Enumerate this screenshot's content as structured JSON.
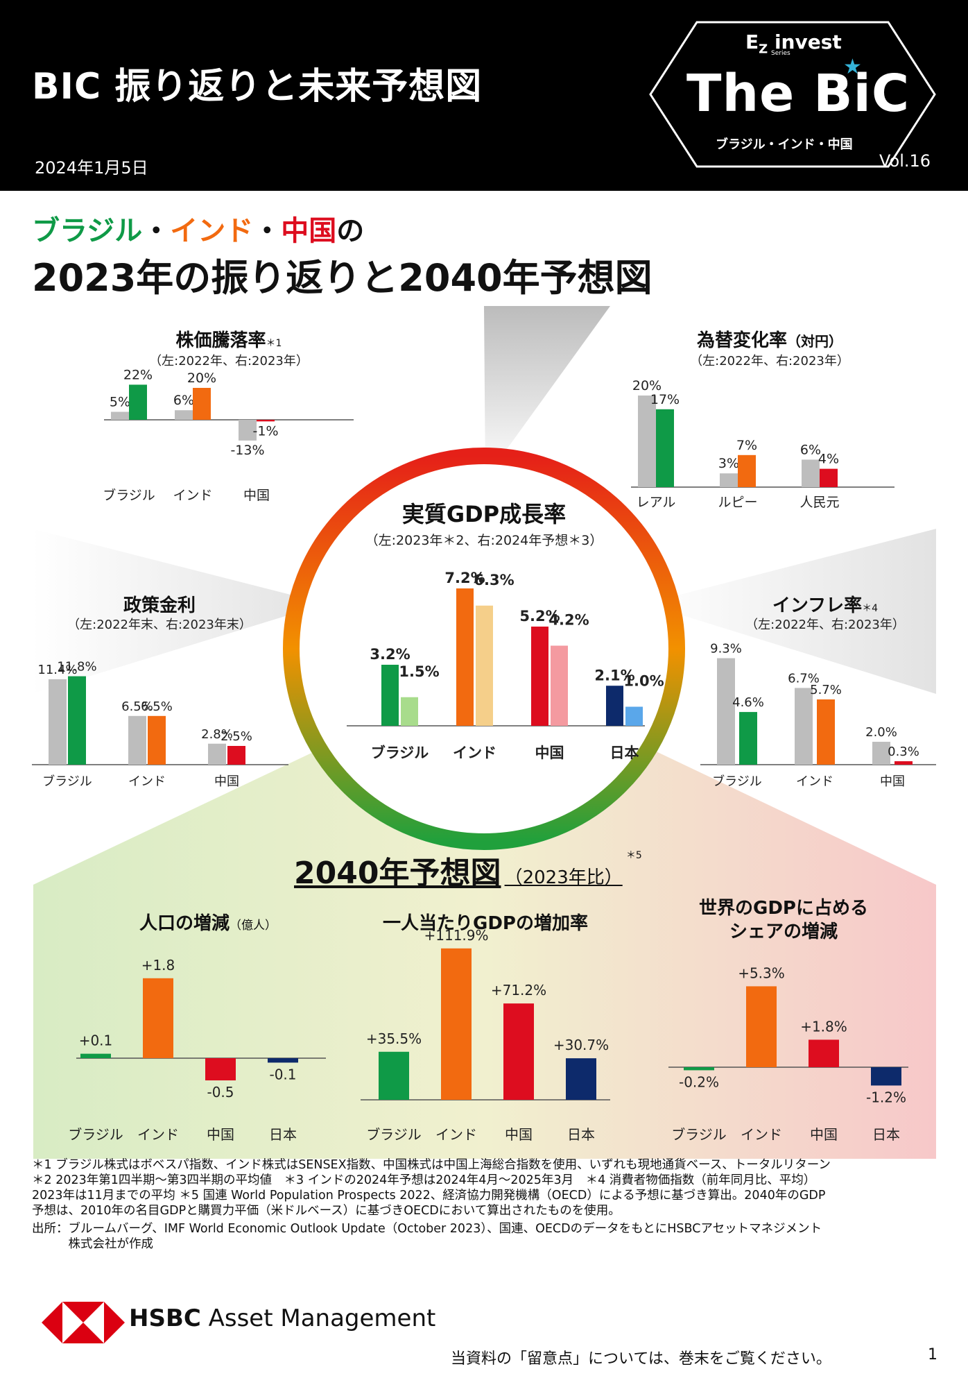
{
  "header": {
    "title": "BIC 振り返りと未来予想図",
    "date": "2024年1月5日",
    "brand_ez": "E",
    "brand_z": "Z",
    "brand_invest": "invest",
    "brand_series": "Series",
    "brand_name": "The BiC",
    "brand_sub": "ブラジル・インド・中国",
    "volume": "Vol.16"
  },
  "subtitle": {
    "brazil": "ブラジル",
    "india": "インド",
    "china": "中国",
    "dot": "・",
    "no": "の",
    "line2": "2023年の振り返りと2040年予想図"
  },
  "colors": {
    "brazil": "#0f9a47",
    "brazil_light": "#a8dc8c",
    "india": "#f26a10",
    "india_light": "#f5cf8a",
    "china": "#dd0d1f",
    "china_light": "#f49aa0",
    "japan": "#0d2a6b",
    "japan_light": "#5aa7ea",
    "gray": "#bdbdbd"
  },
  "chart_data": [
    {
      "id": "stock",
      "type": "bar",
      "title": "株価騰落率",
      "title_note": "＊1",
      "subtitle": "（左:2022年、右:2023年）",
      "categories": [
        "ブラジル",
        "インド",
        "中国"
      ],
      "series": [
        {
          "name": "2022年",
          "values": [
            5,
            6,
            -13
          ]
        },
        {
          "name": "2023年",
          "values": [
            22,
            20,
            -1
          ]
        }
      ],
      "labels": [
        [
          "5%",
          "22%"
        ],
        [
          "6%",
          "20%"
        ],
        [
          "-13%",
          "-1%"
        ]
      ]
    },
    {
      "id": "fx",
      "type": "bar",
      "title": "為替変化率",
      "title_note": "（対円）",
      "subtitle": "（左:2022年、右:2023年）",
      "categories": [
        "レアル",
        "ルピー",
        "人民元"
      ],
      "series": [
        {
          "name": "2022年",
          "values": [
            20,
            3,
            6
          ]
        },
        {
          "name": "2023年",
          "values": [
            17,
            7,
            4
          ]
        }
      ],
      "labels": [
        [
          "20%",
          "17%"
        ],
        [
          "3%",
          "7%"
        ],
        [
          "6%",
          "4%"
        ]
      ]
    },
    {
      "id": "policy",
      "type": "bar",
      "title": "政策金利",
      "subtitle": "（左:2022年末、右:2023年末）",
      "categories": [
        "ブラジル",
        "インド",
        "中国"
      ],
      "series": [
        {
          "name": "2022年末",
          "values": [
            11.4,
            6.5,
            2.8
          ]
        },
        {
          "name": "2023年末",
          "values": [
            11.8,
            6.5,
            2.5
          ]
        }
      ],
      "labels": [
        [
          "11.4%",
          "11.8%"
        ],
        [
          "6.5%",
          "6.5%"
        ],
        [
          "2.8%",
          "2.5%"
        ]
      ]
    },
    {
      "id": "inflation",
      "type": "bar",
      "title": "インフレ率",
      "title_note": "＊4",
      "subtitle": "（左:2022年、右:2023年）",
      "categories": [
        "ブラジル",
        "インド",
        "中国"
      ],
      "series": [
        {
          "name": "2022年",
          "values": [
            9.3,
            6.7,
            2.0
          ]
        },
        {
          "name": "2023年",
          "values": [
            4.6,
            5.7,
            0.3
          ]
        }
      ],
      "labels": [
        [
          "9.3%",
          "4.6%"
        ],
        [
          "6.7%",
          "5.7%"
        ],
        [
          "2.0%",
          "0.3%"
        ]
      ]
    },
    {
      "id": "gdp",
      "type": "bar",
      "title": "実質GDP成長率",
      "subtitle": "（左:2023年＊2、右:2024年予想＊3）",
      "categories": [
        "ブラジル",
        "インド",
        "中国",
        "日本"
      ],
      "series": [
        {
          "name": "2023年",
          "values": [
            3.2,
            7.2,
            5.2,
            2.1
          ]
        },
        {
          "name": "2024年予想",
          "values": [
            1.5,
            6.3,
            4.2,
            1.0
          ]
        }
      ],
      "labels": [
        [
          "3.2%",
          "1.5%"
        ],
        [
          "7.2%",
          "6.3%"
        ],
        [
          "5.2%",
          "4.2%"
        ],
        [
          "2.1%",
          "1.0%"
        ]
      ]
    },
    {
      "id": "population",
      "type": "bar",
      "title": "人口の増減",
      "title_note": "（億人）",
      "categories": [
        "ブラジル",
        "インド",
        "中国",
        "日本"
      ],
      "values": [
        0.1,
        1.8,
        -0.5,
        -0.1
      ],
      "labels": [
        "+0.1",
        "+1.8",
        "-0.5",
        "-0.1"
      ]
    },
    {
      "id": "gdp_per_capita",
      "type": "bar",
      "title": "一人当たりGDPの増加率",
      "categories": [
        "ブラジル",
        "インド",
        "中国",
        "日本"
      ],
      "values": [
        35.5,
        111.9,
        71.2,
        30.7
      ],
      "labels": [
        "+35.5%",
        "+111.9%",
        "+71.2%",
        "+30.7%"
      ]
    },
    {
      "id": "gdp_share",
      "type": "bar",
      "title": "世界のGDPに占める",
      "title2": "シェアの増減",
      "categories": [
        "ブラジル",
        "インド",
        "中国",
        "日本"
      ],
      "values": [
        -0.2,
        5.3,
        1.8,
        -1.2
      ],
      "labels": [
        "-0.2%",
        "+5.3%",
        "+1.8%",
        "-1.2%"
      ]
    }
  ],
  "forecast": {
    "title": "2040年予想図",
    "note": "（2023年比）",
    "mark": "＊5"
  },
  "notes": [
    "＊1 ブラジル株式はボベスパ指数、インド株式はSENSEX指数、中国株式は中国上海総合指数を使用、いずれも現地通貨ベース、トータルリターン",
    "＊2 2023年第1四半期～第3四半期の平均値　＊3 インドの2024年予想は2024年4月～2025年3月　＊4 消費者物価指数（前年同月比、平均）",
    "2023年は11月までの平均 ＊5 国連 World Population Prospects 2022、経済協力開発機構（OECD）による予想に基づき算出。2040年のGDP",
    "予想は、2010年の名目GDPと購買力平価（米ドルベース）に基づきOECDにおいて算出されたものを使用。",
    "出所：ブルームバーグ、IMF World Economic Outlook Update（October 2023）、国連、OECDのデータをもとにHSBCアセットマネジメント",
    "　　　株式会社が作成"
  ],
  "footer": {
    "brand_bold": "HSBC",
    "brand_rest": " Asset Management",
    "disclaimer": "当資料の「留意点」については、巻末をご覧ください。",
    "page": "1"
  }
}
